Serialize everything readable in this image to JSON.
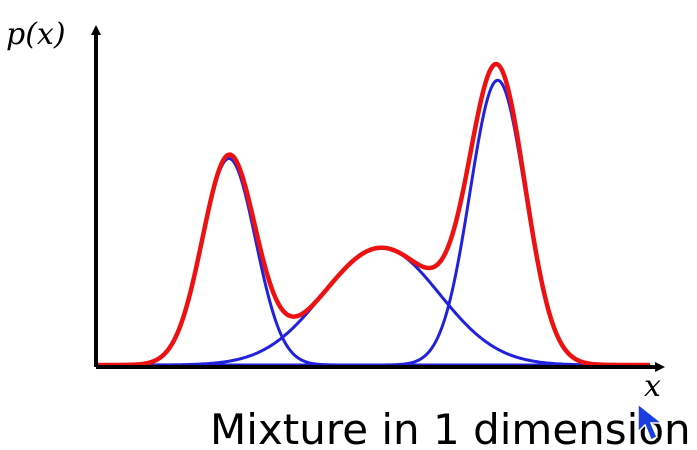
{
  "caption": "Mixture in 1 dimension",
  "axes": {
    "ylabel": "p(x)",
    "xlabel": "x"
  },
  "chart_data": {
    "type": "line",
    "xlim": [
      0,
      10
    ],
    "ylim": [
      0,
      1.2
    ],
    "grid": false,
    "legend": "none",
    "components": [
      {
        "mean": 2.4,
        "sd": 0.48,
        "peak": 0.74,
        "color": "#2222dd"
      },
      {
        "mean": 5.15,
        "sd": 1.05,
        "peak": 0.42,
        "color": "#2222dd"
      },
      {
        "mean": 7.25,
        "sd": 0.5,
        "peak": 1.02,
        "color": "#2222dd"
      }
    ],
    "mixture": {
      "color": "#ee1111"
    }
  },
  "icons": {
    "cursor": "mouse-pointer-icon",
    "cursor_color": "#1a3fe0"
  }
}
